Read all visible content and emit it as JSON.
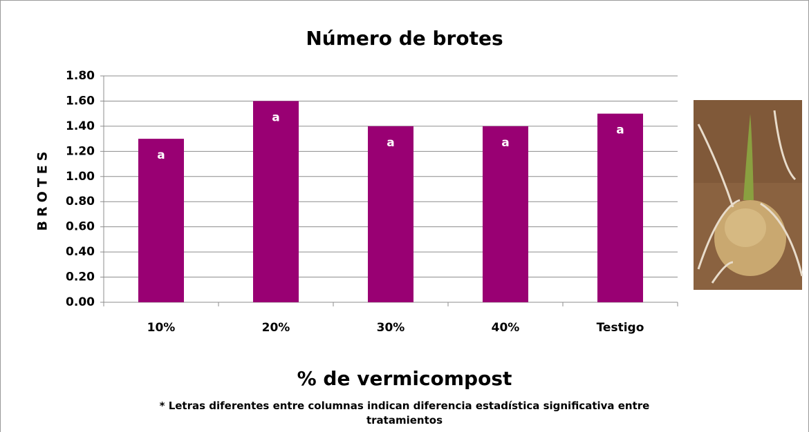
{
  "chart_data": {
    "type": "bar",
    "title": "Número de brotes",
    "categories": [
      "10%",
      "20%",
      "30%",
      "40%",
      "Testigo"
    ],
    "values": [
      1.3,
      1.6,
      1.4,
      1.4,
      1.5
    ],
    "letters": [
      "a",
      "a",
      "a",
      "a",
      "a"
    ],
    "color": "#990073",
    "ylim": [
      0,
      1.8
    ],
    "yticks": [
      {
        "value": 0,
        "label": "0.00"
      },
      {
        "value": 0.2,
        "label": "0.20"
      },
      {
        "value": 0.4,
        "label": "0.40"
      },
      {
        "value": 0.6,
        "label": "0.60"
      },
      {
        "value": 0.8,
        "label": "0.80"
      },
      {
        "value": 1.0,
        "label": "1.00"
      },
      {
        "value": 1.2,
        "label": "1.20"
      },
      {
        "value": 1.4,
        "label": "1.40"
      },
      {
        "value": 1.6,
        "label": "1.60"
      },
      {
        "value": 1.8,
        "label": "1.80"
      }
    ],
    "grid": true,
    "y_label": "BROTES",
    "x_label": "% de vermicompost",
    "note": "* Letras diferentes entre columnas indican diferencia estadística significativa entre tratamientos"
  }
}
